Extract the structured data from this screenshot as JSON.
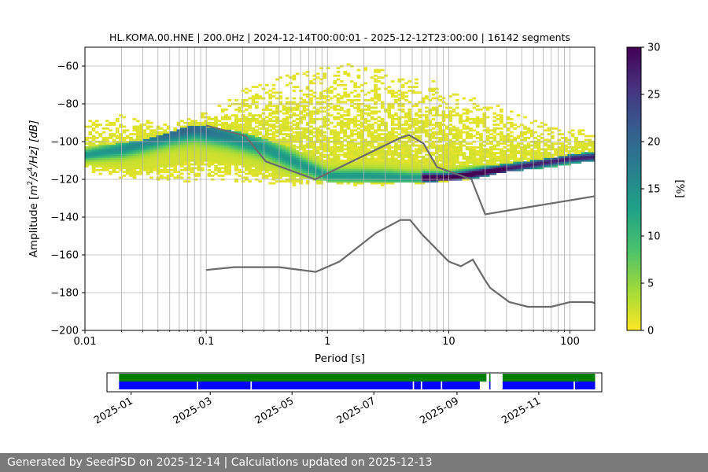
{
  "chart_data": [
    {
      "type": "heatmap",
      "title": "HL.KOMA.00.HNE | 200.0Hz | 2024-12-14T00:00:01 - 2025-12-12T23:00:00 | 16142 segments",
      "xlabel": "Period [s]",
      "ylabel": "Amplitude [m²/s⁴/Hz] [dB]",
      "ylabel_parts": {
        "pre": "Amplitude [",
        "m": "m",
        "sup2": "2",
        "mid": "/s",
        "sup4": "4",
        "post": "/Hz] [dB]"
      },
      "x_scale": "log",
      "xlim": [
        0.01,
        160
      ],
      "ylim": [
        -200,
        -50
      ],
      "x_ticks": [
        {
          "value": 0.01,
          "label": "0.01"
        },
        {
          "value": 0.1,
          "label": "0.1"
        },
        {
          "value": 1,
          "label": "1"
        },
        {
          "value": 10,
          "label": "10"
        },
        {
          "value": 100,
          "label": "100"
        }
      ],
      "y_ticks": [
        {
          "value": -60,
          "label": "−60"
        },
        {
          "value": -80,
          "label": "−80"
        },
        {
          "value": -100,
          "label": "−100"
        },
        {
          "value": -120,
          "label": "−120"
        },
        {
          "value": -140,
          "label": "−140"
        },
        {
          "value": -160,
          "label": "−160"
        },
        {
          "value": -180,
          "label": "−180"
        },
        {
          "value": -200,
          "label": "−200"
        }
      ],
      "grid": true,
      "colormap": "viridis_r",
      "colorbar": {
        "label": "[%]",
        "range": [
          0,
          30
        ],
        "ticks": [
          {
            "value": 0,
            "label": "0"
          },
          {
            "value": 5,
            "label": "5"
          },
          {
            "value": 10,
            "label": "10"
          },
          {
            "value": 15,
            "label": "15"
          },
          {
            "value": 20,
            "label": "20"
          },
          {
            "value": 25,
            "label": "25"
          },
          {
            "value": 30,
            "label": "30"
          }
        ],
        "stops": [
          "#fde725",
          "#a0da39",
          "#4ac16d",
          "#1fa187",
          "#277f8e",
          "#365c8d",
          "#46327e",
          "#440154"
        ]
      },
      "distribution": {
        "mode_curve": [
          [
            0.01,
            -107
          ],
          [
            0.02,
            -104
          ],
          [
            0.05,
            -96
          ],
          [
            0.08,
            -93
          ],
          [
            0.15,
            -97
          ],
          [
            0.3,
            -103
          ],
          [
            0.6,
            -112
          ],
          [
            1.0,
            -118
          ],
          [
            2.0,
            -118
          ],
          [
            5.0,
            -119
          ],
          [
            10.0,
            -119
          ],
          [
            20.0,
            -116
          ],
          [
            50.0,
            -112
          ],
          [
            100.0,
            -109
          ],
          [
            160.0,
            -108
          ]
        ],
        "inner_envelope": [
          [
            0.01,
            -103,
            -112
          ],
          [
            0.03,
            -99,
            -115
          ],
          [
            0.08,
            -91,
            -110
          ],
          [
            0.2,
            -95,
            -112
          ],
          [
            0.5,
            -103,
            -118
          ],
          [
            1.0,
            -111,
            -121
          ],
          [
            3.0,
            -110,
            -121
          ],
          [
            8.0,
            -113,
            -121
          ],
          [
            20.0,
            -113,
            -119
          ],
          [
            60.0,
            -109,
            -116
          ],
          [
            160.0,
            -105,
            -112
          ]
        ],
        "outer_envelope": [
          [
            0.01,
            -89,
            -115
          ],
          [
            0.02,
            -85,
            -120
          ],
          [
            0.05,
            -91,
            -121
          ],
          [
            0.1,
            -84,
            -121
          ],
          [
            0.2,
            -72,
            -121
          ],
          [
            0.5,
            -64,
            -123
          ],
          [
            1.2,
            -58,
            -123
          ],
          [
            3.0,
            -62,
            -123
          ],
          [
            8.0,
            -68,
            -122
          ],
          [
            15.0,
            -76,
            -120
          ],
          [
            30.0,
            -82,
            -116
          ],
          [
            60.0,
            -90,
            -114
          ],
          [
            100.0,
            -92,
            -112
          ],
          [
            160.0,
            -95,
            -110
          ]
        ]
      },
      "series": [
        {
          "values": [
            [
              0.1,
              -91.5
            ],
            [
              0.21,
              -97
            ],
            [
              0.31,
              -110.5
            ],
            [
              0.79,
              -120
            ],
            [
              4.0,
              -98
            ],
            [
              4.7,
              -96.5
            ],
            [
              6.2,
              -101
            ],
            [
              8.0,
              -113.5
            ],
            [
              15.4,
              -120
            ],
            [
              20.0,
              -138.5
            ],
            [
              158,
              -129
            ]
          ]
        },
        {
          "values": [
            [
              0.1,
              -168
            ],
            [
              0.17,
              -166.5
            ],
            [
              0.4,
              -166.5
            ],
            [
              0.8,
              -169
            ],
            [
              1.26,
              -163.5
            ],
            [
              2.5,
              -148.5
            ],
            [
              4.0,
              -141.5
            ],
            [
              4.8,
              -141.5
            ],
            [
              6.0,
              -149
            ],
            [
              10.0,
              -163.5
            ],
            [
              12.6,
              -166
            ],
            [
              15.8,
              -162.5
            ],
            [
              20.0,
              -173.5
            ],
            [
              22.0,
              -177.5
            ],
            [
              31.6,
              -185
            ],
            [
              45.0,
              -187.5
            ],
            [
              70.0,
              -187.5
            ],
            [
              100.0,
              -185
            ],
            [
              150.0,
              -185
            ],
            [
              160.0,
              -185.5
            ]
          ]
        }
      ],
      "line_color": "#6b6b6b"
    },
    {
      "type": "timeline",
      "x_start": "2024-12-14",
      "x_end": "2025-12-18",
      "tick_labels": [
        {
          "date": "2025-01-01",
          "label": "2025-01"
        },
        {
          "date": "2025-03-01",
          "label": "2025-03"
        },
        {
          "date": "2025-05-01",
          "label": "2025-05"
        },
        {
          "date": "2025-07-01",
          "label": "2025-07"
        },
        {
          "date": "2025-09-01",
          "label": "2025-09"
        },
        {
          "date": "2025-11-01",
          "label": "2025-11"
        }
      ],
      "rows": [
        {
          "color": "#008000",
          "intervals": [
            [
              "2024-12-23",
              "2025-09-23"
            ],
            [
              "2025-09-25",
              "2025-09-26"
            ],
            [
              "2025-10-05",
              "2025-12-13"
            ]
          ]
        },
        {
          "color": "#0000ff",
          "intervals": [
            [
              "2024-12-23",
              "2025-02-19"
            ],
            [
              "2025-02-20",
              "2025-03-31"
            ],
            [
              "2025-04-01",
              "2025-07-30"
            ],
            [
              "2025-07-31",
              "2025-08-05"
            ],
            [
              "2025-08-06",
              "2025-08-20"
            ],
            [
              "2025-08-21",
              "2025-09-18"
            ],
            [
              "2025-09-25",
              "2025-09-26"
            ],
            [
              "2025-10-05",
              "2025-11-27"
            ],
            [
              "2025-11-28",
              "2025-12-13"
            ]
          ]
        }
      ]
    }
  ],
  "footer": {
    "text": "Generated by SeedPSD on 2025-12-14 | Calculations updated on 2025-12-13"
  }
}
